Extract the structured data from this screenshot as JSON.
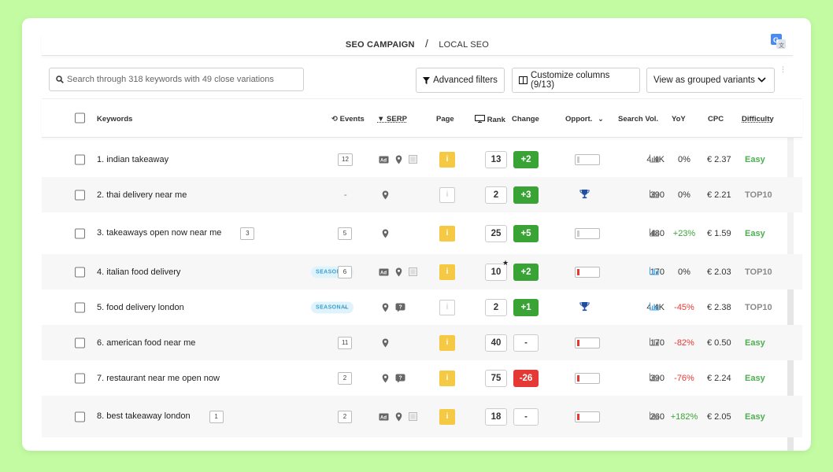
{
  "breadcrumb": {
    "campaign": "SEO CAMPAIGN",
    "separator": "/",
    "page": "LOCAL SEO"
  },
  "search": {
    "placeholder": "Search through 318 keywords with 49 close variations"
  },
  "toolbar": {
    "filters_label": "Advanced filters",
    "columns_label": "Customize columns (9/13)",
    "view_label": "View as grouped variants"
  },
  "columns": {
    "keywords": "Keywords",
    "events": "Events",
    "serp": "SERP",
    "page": "Page",
    "rank": "Rank",
    "change": "Change",
    "opportunity": "Opport.",
    "volume": "Search Vol.",
    "yoy": "YoY",
    "cpc": "CPC",
    "difficulty": "Difficulty"
  },
  "colors": {
    "page_bg": "#c3fba3",
    "change_up": "#3aa335",
    "change_down": "#e53935",
    "easy": "#4caf50",
    "top10": "#8a8a8a",
    "yoy_pos": "#3aa335",
    "yoy_neg": "#e53935",
    "seasonal_bg": "#dff3fc",
    "seasonal_fg": "#3a9ec9",
    "page_yellow": "#f6c944"
  },
  "rows": [
    {
      "keyword": "1. indian takeaway",
      "variants": "",
      "seasonal": "",
      "events": "12",
      "serp": [
        "ad-icon",
        "map-pin-icon",
        "image-icon"
      ],
      "page_info": true,
      "rank": "13",
      "star": false,
      "change": "+2",
      "change_dir": "up",
      "opp": "bar",
      "opp_color": "#cccccc",
      "volume": "4.4K",
      "vol_trend": "gray",
      "yoy": "0%",
      "yoy_dir": "flat",
      "cpc": "€ 2.37",
      "difficulty": "Easy"
    },
    {
      "keyword": "2. thai delivery near me",
      "variants": "",
      "seasonal": "",
      "events": "-",
      "serp": [
        "map-pin-icon"
      ],
      "page_info": false,
      "rank": "2",
      "star": false,
      "change": "+3",
      "change_dir": "up",
      "opp": "trophy",
      "opp_color": "",
      "volume": "390",
      "vol_trend": "gray",
      "yoy": "0%",
      "yoy_dir": "flat",
      "cpc": "€ 2.21",
      "difficulty": "TOP10"
    },
    {
      "keyword": "3. takeaways open now near me",
      "variants": "3",
      "seasonal": "",
      "events": "5",
      "serp": [
        "map-pin-icon"
      ],
      "page_info": true,
      "rank": "25",
      "star": false,
      "change": "+5",
      "change_dir": "up",
      "opp": "bar",
      "opp_color": "#cccccc",
      "volume": "480",
      "vol_trend": "gray",
      "yoy": "+23%",
      "yoy_dir": "pos",
      "cpc": "€ 1.59",
      "difficulty": "Easy"
    },
    {
      "keyword": "4. italian food delivery",
      "variants": "",
      "seasonal": "SEASONAL",
      "events": "6",
      "serp": [
        "ad-icon",
        "map-pin-icon",
        "image-icon"
      ],
      "page_info": true,
      "rank": "10",
      "star": true,
      "change": "+2",
      "change_dir": "up",
      "opp": "bar",
      "opp_color": "#e53935",
      "volume": "170",
      "vol_trend": "blue",
      "yoy": "0%",
      "yoy_dir": "flat",
      "cpc": "€ 2.03",
      "difficulty": "TOP10"
    },
    {
      "keyword": "5. food delivery london",
      "variants": "",
      "seasonal": "SEASONAL",
      "events": "-",
      "serp": [
        "map-pin-icon",
        "review-icon"
      ],
      "page_info": false,
      "rank": "2",
      "star": false,
      "change": "+1",
      "change_dir": "up",
      "opp": "trophy",
      "opp_color": "",
      "volume": "4.4K",
      "vol_trend": "blue",
      "yoy": "-45%",
      "yoy_dir": "neg",
      "cpc": "€ 2.38",
      "difficulty": "TOP10"
    },
    {
      "keyword": "6. american food near me",
      "variants": "",
      "seasonal": "",
      "events": "11",
      "serp": [
        "map-pin-icon"
      ],
      "page_info": true,
      "rank": "40",
      "star": false,
      "change": "-",
      "change_dir": "none",
      "opp": "bar",
      "opp_color": "#e53935",
      "volume": "170",
      "vol_trend": "gray",
      "yoy": "-82%",
      "yoy_dir": "neg",
      "cpc": "€ 0.50",
      "difficulty": "Easy"
    },
    {
      "keyword": "7. restaurant near me open now",
      "variants": "",
      "seasonal": "",
      "events": "2",
      "serp": [
        "map-pin-icon",
        "review-icon"
      ],
      "page_info": true,
      "rank": "75",
      "star": false,
      "change": "-26",
      "change_dir": "down",
      "opp": "bar",
      "opp_color": "#e53935",
      "volume": "390",
      "vol_trend": "gray",
      "yoy": "-76%",
      "yoy_dir": "neg",
      "cpc": "€ 2.24",
      "difficulty": "Easy"
    },
    {
      "keyword": "8. best takeaway london",
      "variants": "1",
      "seasonal": "",
      "events": "2",
      "serp": [
        "ad-icon",
        "map-pin-icon",
        "image-icon"
      ],
      "page_info": true,
      "rank": "18",
      "star": false,
      "change": "-",
      "change_dir": "none",
      "opp": "bar",
      "opp_color": "#e53935",
      "volume": "260",
      "vol_trend": "gray",
      "yoy": "+182%",
      "yoy_dir": "pos",
      "cpc": "€ 2.05",
      "difficulty": "Easy"
    }
  ]
}
